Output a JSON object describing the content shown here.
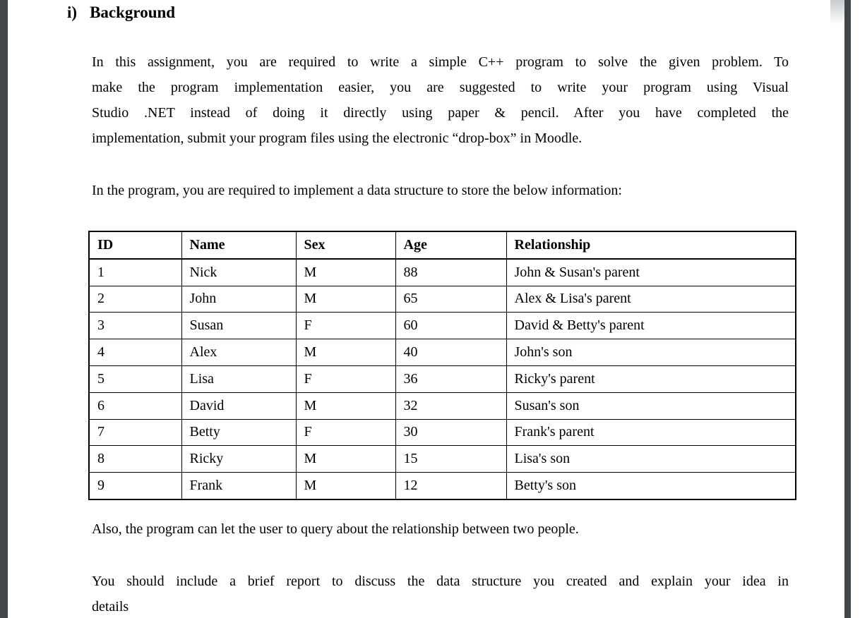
{
  "page": {
    "heading": {
      "number": "i)",
      "title": "Background"
    },
    "paragraphs": [
      {
        "lines": [
          "In this assignment, you are required to write a simple C++ program to solve the given problem. To",
          "make the program implementation easier, you are suggested to write your program using Visual",
          "Studio .NET instead of doing it directly using paper & pencil. After you have completed the",
          "implementation, submit your program files using the electronic “drop-box” in Moodle."
        ]
      },
      {
        "lines": [
          "In the program, you are required to implement a data structure to store the below information:"
        ]
      },
      {
        "lines": [
          "Also, the program can let the user to query about the relationship between two people."
        ]
      },
      {
        "lines": [
          "You should include a brief report to discuss the data structure you created and explain your idea in",
          "details"
        ]
      }
    ]
  },
  "table": {
    "headers": [
      "ID",
      "Name",
      "Sex",
      "Age",
      "Relationship"
    ],
    "rows": [
      [
        "1",
        "Nick",
        "M",
        "88",
        "John & Susan's parent"
      ],
      [
        "2",
        "John",
        "M",
        "65",
        "Alex & Lisa's parent"
      ],
      [
        "3",
        "Susan",
        "F",
        "60",
        "David & Betty's parent"
      ],
      [
        "4",
        "Alex",
        "M",
        "40",
        "John's son"
      ],
      [
        "5",
        "Lisa",
        "F",
        "36",
        "Ricky's parent"
      ],
      [
        "6",
        "David",
        "M",
        "32",
        "Susan's son"
      ],
      [
        "7",
        "Betty",
        "F",
        "30",
        "Frank's parent"
      ],
      [
        "8",
        "Ricky",
        "M",
        "15",
        "Lisa's son"
      ],
      [
        "9",
        "Frank",
        "M",
        "12",
        "Betty's son"
      ]
    ]
  },
  "colors": {
    "viewer_edge": "#41464b",
    "page_background": "#ffffff",
    "text": "#000000",
    "table_border": "#000000"
  }
}
